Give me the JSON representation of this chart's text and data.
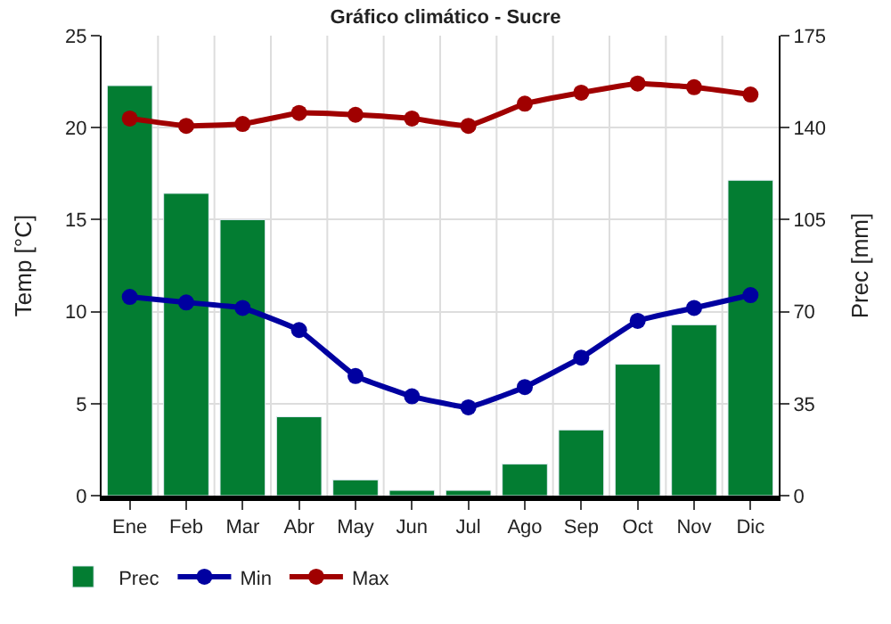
{
  "chart_data": {
    "type": "bar",
    "title": "Gráfico climático - Sucre",
    "ylabel": "Temp [°C]",
    "y2label": "Prec [mm]",
    "categories": [
      "Ene",
      "Feb",
      "Mar",
      "Abr",
      "May",
      "Jun",
      "Jul",
      "Ago",
      "Sep",
      "Oct",
      "Nov",
      "Dic"
    ],
    "series": [
      {
        "name": "Prec",
        "axis": "y2",
        "color": "#037d32",
        "values": [
          156,
          115,
          105,
          30,
          6,
          2,
          2,
          12,
          25,
          50,
          65,
          120
        ]
      },
      {
        "name": "Min",
        "type": "line",
        "color": "#0000a0",
        "values": [
          10.8,
          10.5,
          10.2,
          9.0,
          6.5,
          5.4,
          4.8,
          5.9,
          7.5,
          9.5,
          10.2,
          10.9
        ]
      },
      {
        "name": "Max",
        "type": "line",
        "color": "#a00000",
        "values": [
          20.5,
          20.1,
          20.2,
          20.8,
          20.7,
          20.5,
          20.1,
          21.3,
          21.9,
          22.4,
          22.2,
          21.8
        ]
      }
    ],
    "ylim": [
      0,
      25
    ],
    "yticks": [
      0,
      5,
      10,
      15,
      20,
      25
    ],
    "y2lim": [
      0,
      175
    ],
    "y2ticks": [
      0,
      35,
      70,
      105,
      140,
      175
    ],
    "grid": true,
    "legend": "bottom",
    "marker": "circle",
    "line_style": "solid"
  }
}
